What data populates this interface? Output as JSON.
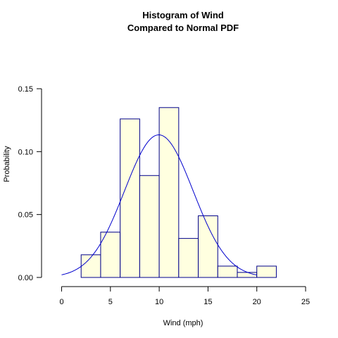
{
  "chart_data": {
    "type": "bar",
    "title": "Histogram of Wind",
    "subtitle": "Compared to Normal PDF",
    "xlabel": "Wind (mph)",
    "ylabel": "Probability",
    "xlim": [
      0,
      25
    ],
    "ylim": [
      0,
      0.15
    ],
    "x_ticks": [
      "0",
      "5",
      "10",
      "15",
      "20",
      "25"
    ],
    "y_ticks": [
      "0.00",
      "0.05",
      "0.10",
      "0.15"
    ],
    "bin_width": 2,
    "bins": [
      {
        "x_start": 2,
        "x_end": 4,
        "value": 0.018
      },
      {
        "x_start": 4,
        "x_end": 6,
        "value": 0.036
      },
      {
        "x_start": 6,
        "x_end": 8,
        "value": 0.126
      },
      {
        "x_start": 8,
        "x_end": 10,
        "value": 0.081
      },
      {
        "x_start": 10,
        "x_end": 12,
        "value": 0.135
      },
      {
        "x_start": 12,
        "x_end": 14,
        "value": 0.031
      },
      {
        "x_start": 14,
        "x_end": 16,
        "value": 0.049
      },
      {
        "x_start": 16,
        "x_end": 18,
        "value": 0.009
      },
      {
        "x_start": 18,
        "x_end": 20,
        "value": 0.004
      },
      {
        "x_start": 20,
        "x_end": 22,
        "value": 0.009
      }
    ],
    "normal_pdf": {
      "mean": 9.96,
      "sd": 3.52,
      "x_range": [
        0,
        20
      ]
    },
    "colors": {
      "bar_fill": "#FFFFE0",
      "bar_stroke": "#00008B",
      "curve": "#0000CD",
      "axis": "#000000"
    },
    "grid": false,
    "legend": "none"
  }
}
